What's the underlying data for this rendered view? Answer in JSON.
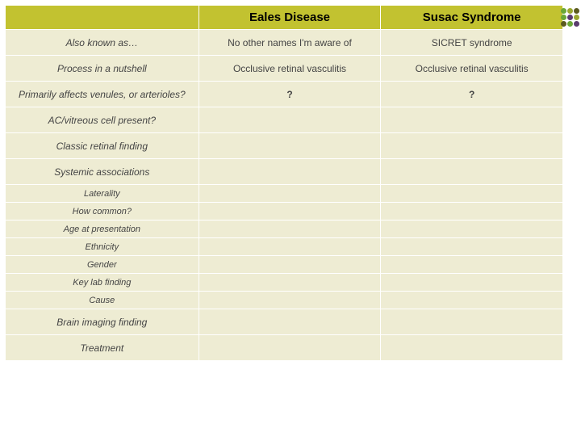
{
  "colors": {
    "header_bg": "#c2c230",
    "cell_bg": "#eeecd3",
    "border": "#ffffff",
    "text_header": "#000000",
    "text_body": "#444444",
    "qmark": "#000000",
    "dot_green": "#6aa736",
    "dot_olive": "#9aa72f",
    "dot_dark": "#5b5b1f",
    "dot_purple": "#5a3c6e"
  },
  "header": {
    "col1": "Eales Disease",
    "col2": "Susac Syndrome"
  },
  "rows": [
    {
      "label": "Also known as…",
      "col1": "No other names I'm aware of",
      "col2": "SICRET syndrome",
      "size": "normal"
    },
    {
      "label": "Process in a nutshell",
      "col1": "Occlusive retinal vasculitis",
      "col2": "Occlusive retinal vasculitis",
      "size": "normal"
    },
    {
      "label": "Primarily affects venules, or arterioles?",
      "col1": "?",
      "col2": "?",
      "size": "normal",
      "qmark": true
    },
    {
      "label": "AC/vitreous cell present?",
      "col1": "",
      "col2": "",
      "size": "normal"
    },
    {
      "label": "Classic retinal finding",
      "col1": "",
      "col2": "",
      "size": "normal"
    },
    {
      "label": "Systemic associations",
      "col1": "",
      "col2": "",
      "size": "normal"
    },
    {
      "label": "Laterality",
      "col1": "",
      "col2": "",
      "size": "small"
    },
    {
      "label": "How common?",
      "col1": "",
      "col2": "",
      "size": "small"
    },
    {
      "label": "Age at presentation",
      "col1": "",
      "col2": "",
      "size": "small"
    },
    {
      "label": "Ethnicity",
      "col1": "",
      "col2": "",
      "size": "small"
    },
    {
      "label": "Gender",
      "col1": "",
      "col2": "",
      "size": "small"
    },
    {
      "label": "Key lab finding",
      "col1": "",
      "col2": "",
      "size": "small"
    },
    {
      "label": "Cause",
      "col1": "",
      "col2": "",
      "size": "small"
    },
    {
      "label": "Brain imaging finding",
      "col1": "",
      "col2": "",
      "size": "normal"
    },
    {
      "label": "Treatment",
      "col1": "",
      "col2": "",
      "size": "normal"
    }
  ],
  "fontsize": {
    "header": 15,
    "body": 12,
    "small": 11,
    "qmark": 20
  }
}
